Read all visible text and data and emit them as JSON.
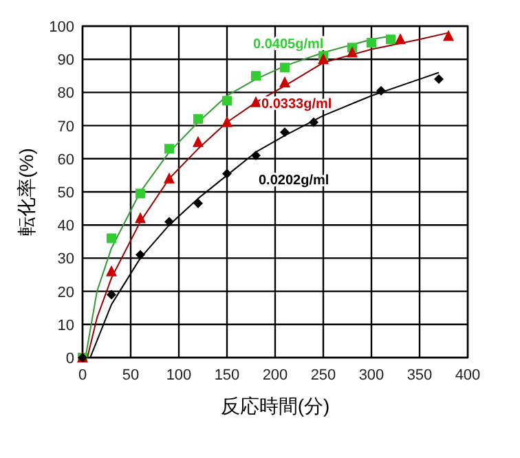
{
  "chart_data": {
    "type": "scatter",
    "xlabel": "反応時間(分)",
    "ylabel": "転化率(%)",
    "xlim": [
      0,
      400
    ],
    "xticks": [
      0,
      50,
      100,
      150,
      200,
      250,
      300,
      350,
      400
    ],
    "ylim": [
      0,
      100
    ],
    "yticks": [
      0,
      10,
      20,
      30,
      40,
      50,
      60,
      70,
      80,
      90,
      100
    ],
    "grid": true,
    "series": [
      {
        "name": "0.0405g/ml",
        "marker": "square",
        "color": "#33cc33",
        "x": [
          0,
          30,
          60,
          90,
          120,
          150,
          180,
          210,
          250,
          280,
          300,
          320
        ],
        "values": [
          0,
          36,
          49.5,
          63,
          72,
          77.5,
          85,
          87.5,
          91,
          93.5,
          95,
          96
        ]
      },
      {
        "name": "0.0333g/ml",
        "marker": "triangle",
        "color": "#cc0000",
        "x": [
          0,
          30,
          60,
          90,
          120,
          150,
          180,
          210,
          250,
          280,
          330,
          380
        ],
        "values": [
          0,
          26,
          42,
          54,
          65,
          71,
          77,
          83,
          90,
          92,
          96,
          97
        ]
      },
      {
        "name": "0.0202g/ml",
        "marker": "diamond",
        "color": "#000000",
        "x": [
          0,
          30,
          60,
          90,
          120,
          150,
          180,
          210,
          240,
          310,
          370
        ],
        "values": [
          0,
          19,
          31,
          41,
          46.5,
          55.5,
          61,
          68,
          71,
          80.5,
          84
        ]
      },
      {
        "type": "line",
        "color": "#339933",
        "x": [
          3,
          15,
          30,
          60,
          90,
          120,
          150,
          180,
          210,
          250,
          300,
          320
        ],
        "values": [
          0,
          20,
          33,
          50,
          62,
          71,
          79,
          84,
          88,
          92,
          96,
          97
        ]
      },
      {
        "type": "line",
        "color": "#990000",
        "x": [
          5,
          15,
          30,
          60,
          90,
          120,
          150,
          180,
          210,
          250,
          300,
          350,
          380
        ],
        "values": [
          0,
          12,
          24,
          41,
          54,
          63,
          71,
          77,
          82,
          89,
          93,
          96,
          98
        ]
      },
      {
        "type": "line",
        "color": "#000000",
        "x": [
          8,
          30,
          60,
          90,
          120,
          150,
          180,
          210,
          250,
          300,
          350,
          370
        ],
        "values": [
          0,
          16,
          30,
          40,
          48,
          55,
          62,
          67,
          73,
          79,
          84,
          86
        ]
      }
    ]
  }
}
